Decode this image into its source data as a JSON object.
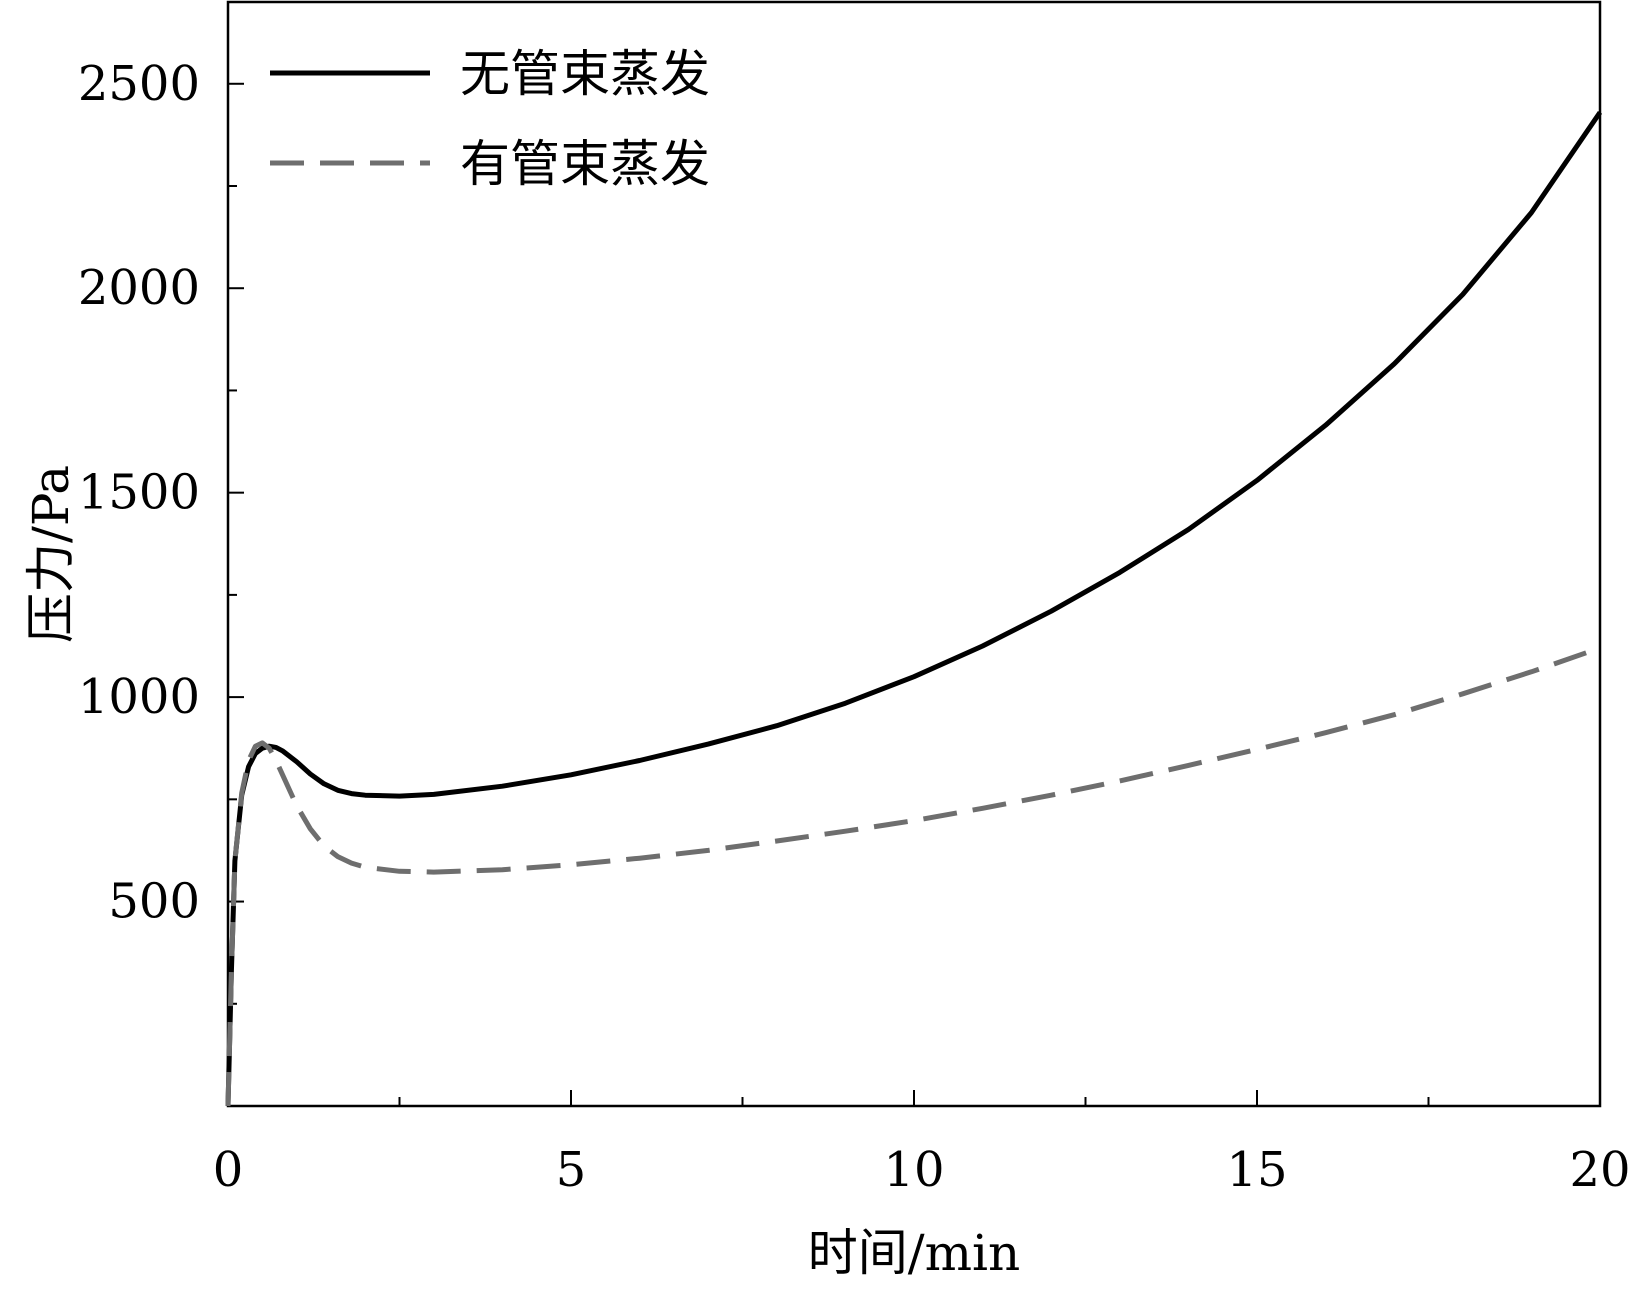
{
  "chart_data": {
    "type": "line",
    "title": "",
    "xlabel": "时间/min",
    "ylabel": "压力/Pa",
    "xlim": [
      0,
      20
    ],
    "ylim": [
      0,
      2700
    ],
    "x_ticks": [
      0,
      5,
      10,
      15,
      20
    ],
    "x_tick_labels": [
      "0",
      "5",
      "10",
      "15",
      "20"
    ],
    "y_ticks": [
      500,
      1000,
      1500,
      2000,
      2500
    ],
    "y_tick_labels": [
      "500",
      "1000",
      "1500",
      "2000",
      "2500"
    ],
    "grid": false,
    "legend_position": "top-left",
    "series": [
      {
        "name": "无管束蒸发",
        "style": "solid",
        "color": "#000000",
        "points": [
          [
            0.0,
            0
          ],
          [
            0.05,
            330
          ],
          [
            0.1,
            600
          ],
          [
            0.2,
            760
          ],
          [
            0.3,
            830
          ],
          [
            0.4,
            862
          ],
          [
            0.5,
            875
          ],
          [
            0.6,
            880
          ],
          [
            0.7,
            877
          ],
          [
            0.8,
            868
          ],
          [
            1.0,
            842
          ],
          [
            1.2,
            812
          ],
          [
            1.4,
            788
          ],
          [
            1.6,
            772
          ],
          [
            1.8,
            764
          ],
          [
            2.0,
            760
          ],
          [
            2.5,
            758
          ],
          [
            3.0,
            762
          ],
          [
            4.0,
            782
          ],
          [
            5.0,
            810
          ],
          [
            6.0,
            845
          ],
          [
            7.0,
            885
          ],
          [
            8.0,
            930
          ],
          [
            9.0,
            985
          ],
          [
            10.0,
            1050
          ],
          [
            11.0,
            1125
          ],
          [
            12.0,
            1210
          ],
          [
            13.0,
            1305
          ],
          [
            14.0,
            1410
          ],
          [
            15.0,
            1530
          ],
          [
            16.0,
            1665
          ],
          [
            17.0,
            1815
          ],
          [
            18.0,
            1985
          ],
          [
            19.0,
            2185
          ],
          [
            20.0,
            2430
          ]
        ]
      },
      {
        "name": "有管束蒸发",
        "style": "dashed",
        "color": "#6e6e6e",
        "points": [
          [
            0.0,
            0
          ],
          [
            0.05,
            330
          ],
          [
            0.1,
            600
          ],
          [
            0.2,
            765
          ],
          [
            0.3,
            845
          ],
          [
            0.4,
            880
          ],
          [
            0.5,
            888
          ],
          [
            0.6,
            875
          ],
          [
            0.7,
            845
          ],
          [
            0.8,
            808
          ],
          [
            1.0,
            735
          ],
          [
            1.2,
            678
          ],
          [
            1.4,
            636
          ],
          [
            1.6,
            610
          ],
          [
            1.8,
            594
          ],
          [
            2.0,
            584
          ],
          [
            2.5,
            574
          ],
          [
            3.0,
            572
          ],
          [
            4.0,
            578
          ],
          [
            5.0,
            590
          ],
          [
            6.0,
            606
          ],
          [
            7.0,
            625
          ],
          [
            8.0,
            648
          ],
          [
            9.0,
            672
          ],
          [
            10.0,
            698
          ],
          [
            11.0,
            728
          ],
          [
            12.0,
            760
          ],
          [
            13.0,
            795
          ],
          [
            14.0,
            833
          ],
          [
            15.0,
            872
          ],
          [
            16.0,
            913
          ],
          [
            17.0,
            957
          ],
          [
            18.0,
            1008
          ],
          [
            19.0,
            1062
          ],
          [
            20.0,
            1120
          ]
        ]
      }
    ]
  }
}
